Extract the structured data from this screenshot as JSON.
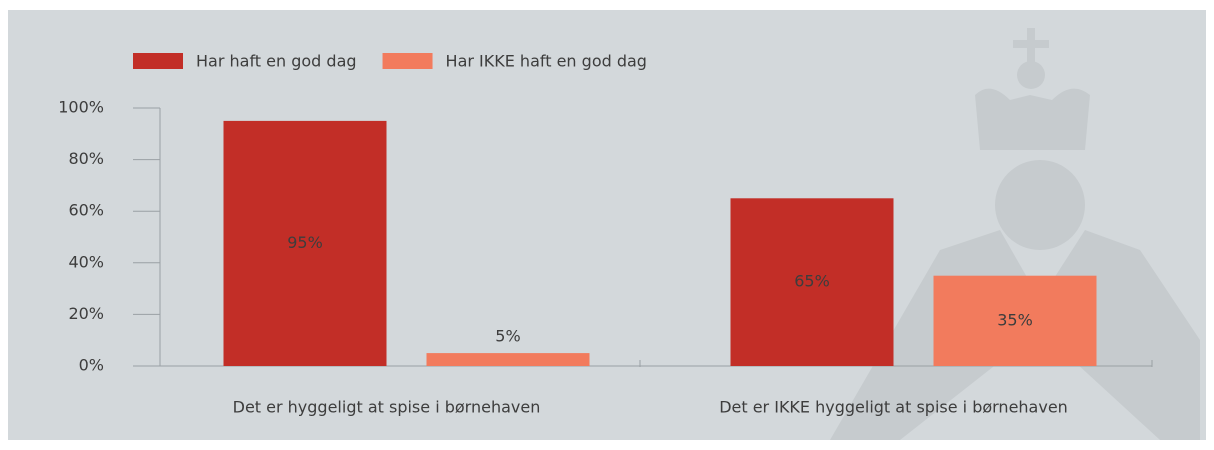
{
  "chart_data": {
    "type": "bar",
    "categories": [
      "Det er hyggeligt at spise i børnehaven",
      "Det er IKKE hyggeligt at spise i børnehaven"
    ],
    "series": [
      {
        "name": "Har haft en god dag",
        "color": "#c22e27",
        "values": [
          95,
          65
        ],
        "value_labels": [
          "95%",
          "65%"
        ]
      },
      {
        "name": "Har IKKE haft en god dag",
        "color": "#f27b5d",
        "values": [
          5,
          35
        ],
        "value_labels": [
          "5%",
          "35%"
        ]
      }
    ],
    "ylim": [
      0,
      100
    ],
    "yticks": [
      {
        "value": 0,
        "label": "0%"
      },
      {
        "value": 20,
        "label": "20%"
      },
      {
        "value": 40,
        "label": "40%"
      },
      {
        "value": 60,
        "label": "60%"
      },
      {
        "value": 80,
        "label": "80%"
      },
      {
        "value": 100,
        "label": "100%"
      }
    ],
    "legend": "top-left"
  }
}
